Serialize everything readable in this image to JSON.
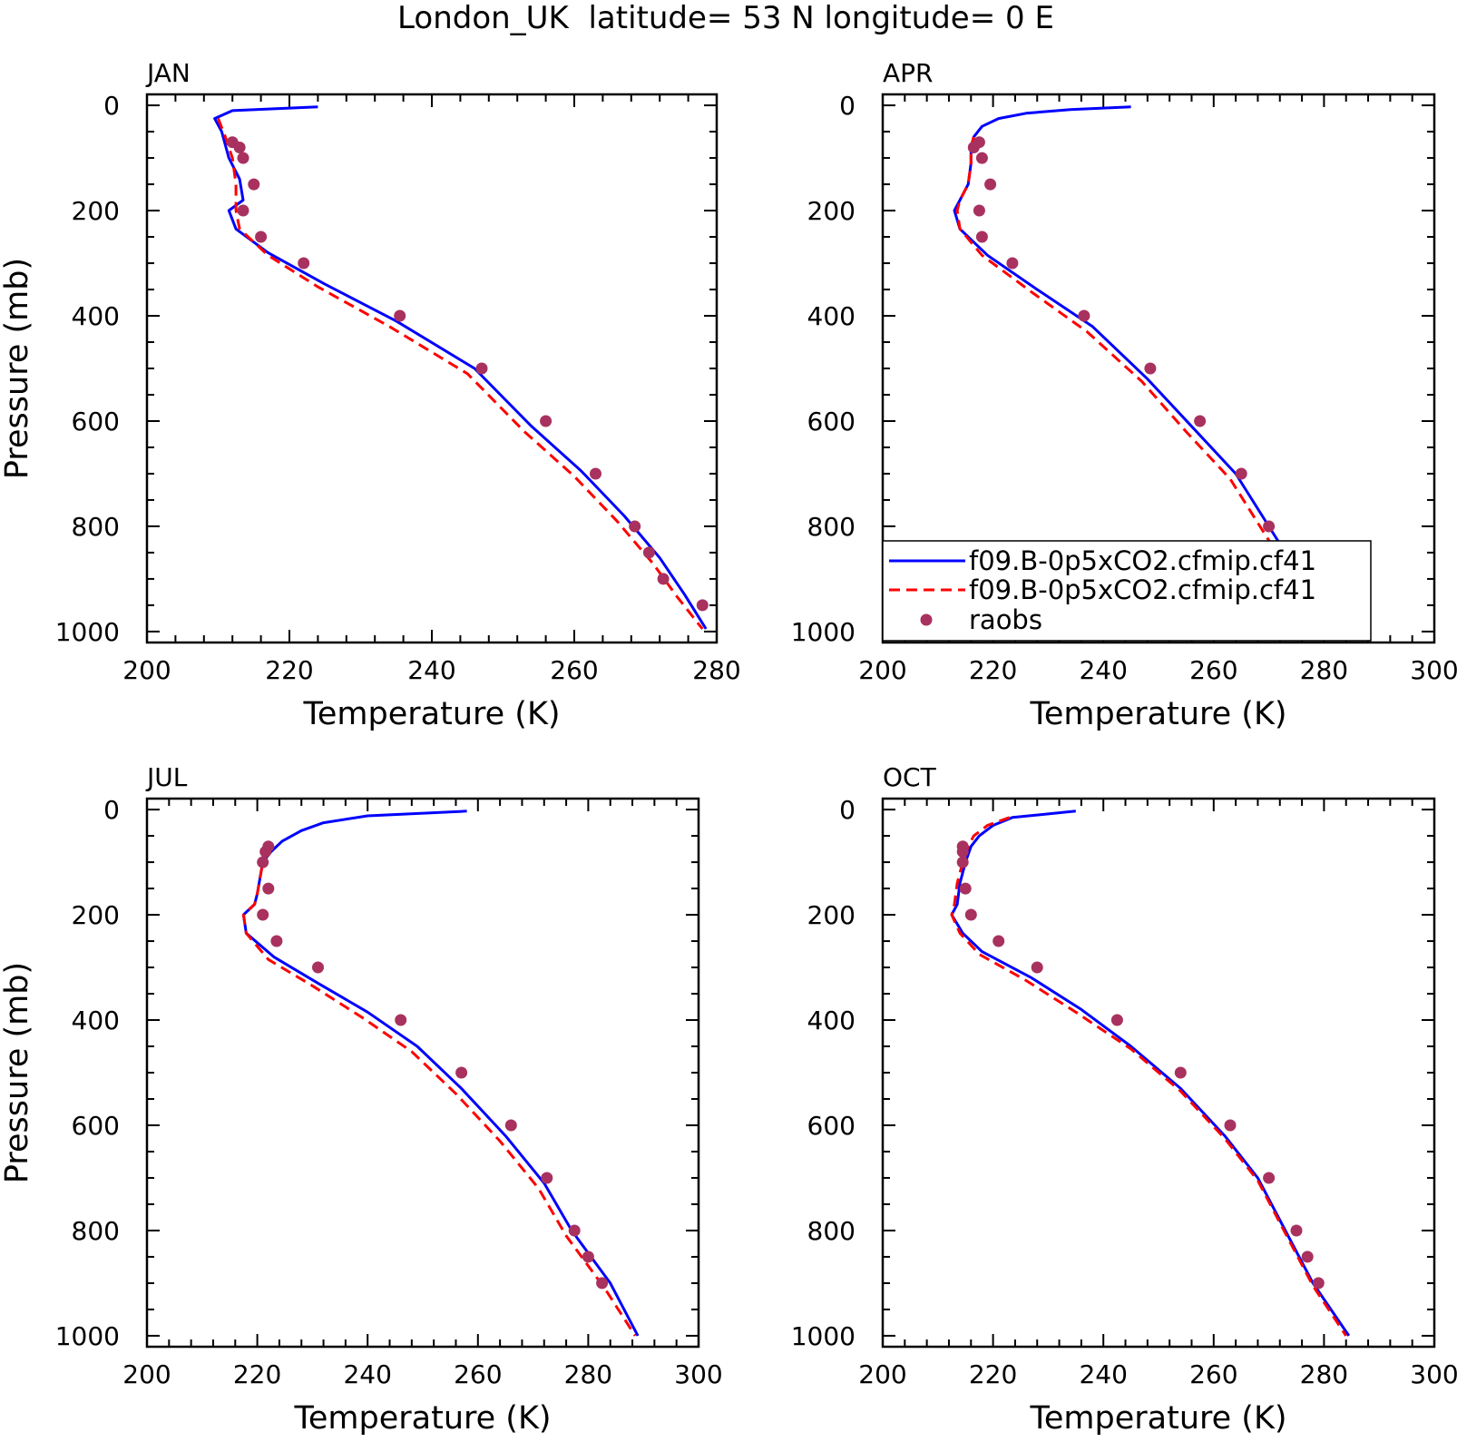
{
  "title": "London_UK  latitude= 53 N longitude= 0 E",
  "colors": {
    "model_a": "#0000ff",
    "model_b": "#ff0000",
    "obs": "#a8315f"
  },
  "legend": {
    "entries": [
      {
        "label": "f09.B-0p5xCO2.cfmip.cf41",
        "style": "solid"
      },
      {
        "label": "f09.B-0p5xCO2.cfmip.cf41",
        "style": "dashed"
      },
      {
        "label": "raobs",
        "style": "dots"
      }
    ],
    "placement": "bottom-left of APR panel"
  },
  "chart_data": [
    {
      "type": "line",
      "panel": "JAN",
      "xlabel": "Temperature (K)",
      "ylabel": "Pressure (mb)",
      "xlim": [
        200,
        280
      ],
      "ylim": [
        1000,
        0
      ],
      "y_inverted": true,
      "xticks": [
        200,
        220,
        240,
        260,
        280
      ],
      "yticks": [
        0,
        200,
        400,
        600,
        800,
        1000
      ],
      "grid": false,
      "series": [
        {
          "style": "solid",
          "x": [
            224,
            212,
            209.5,
            210.5,
            211.5,
            213,
            213.5,
            211.5,
            212.5,
            217,
            225,
            235,
            246,
            254,
            261,
            267,
            272,
            275.5,
            278.5
          ],
          "y": [
            3,
            10,
            25,
            50,
            100,
            140,
            180,
            200,
            235,
            280,
            340,
            410,
            500,
            610,
            695,
            780,
            860,
            930,
            995
          ]
        },
        {
          "style": "dashed",
          "x": [
            210,
            211,
            212,
            212.5,
            212.5,
            213,
            217,
            224,
            234,
            245,
            253,
            260,
            266,
            271,
            274.5,
            278
          ],
          "y": [
            25,
            60,
            100,
            150,
            200,
            235,
            285,
            345,
            420,
            510,
            620,
            705,
            790,
            870,
            935,
            995
          ]
        }
      ],
      "obs": {
        "x": [
          212,
          213,
          213.5,
          215,
          213.5,
          216,
          222,
          235.5,
          247,
          256,
          263,
          268.5,
          270.5,
          272.5,
          278
        ],
        "y": [
          70,
          80,
          100,
          150,
          200,
          250,
          300,
          400,
          500,
          600,
          700,
          800,
          850,
          900,
          950
        ]
      }
    },
    {
      "type": "line",
      "panel": "APR",
      "xlabel": "Temperature (K)",
      "ylabel": "",
      "xlim": [
        200,
        300
      ],
      "ylim": [
        1000,
        0
      ],
      "y_inverted": true,
      "xticks": [
        200,
        220,
        240,
        260,
        280,
        300
      ],
      "yticks": [
        0,
        200,
        400,
        600,
        800,
        1000
      ],
      "grid": false,
      "series": [
        {
          "style": "solid",
          "x": [
            245,
            234,
            226,
            221,
            218,
            216.5,
            216,
            216,
            215.5,
            214,
            213,
            214,
            219,
            228,
            238,
            248,
            256,
            264,
            270,
            276,
            281
          ],
          "y": [
            3,
            8,
            15,
            25,
            40,
            60,
            80,
            110,
            150,
            180,
            200,
            235,
            285,
            350,
            420,
            520,
            610,
            700,
            800,
            900,
            1000
          ]
        },
        {
          "style": "dashed",
          "x": [
            216.5,
            216,
            216,
            215.5,
            214,
            213.5,
            214,
            218,
            227,
            237,
            247,
            255,
            263,
            269,
            275,
            280.5
          ],
          "y": [
            60,
            80,
            110,
            150,
            180,
            200,
            235,
            285,
            355,
            430,
            525,
            620,
            710,
            810,
            910,
            1000
          ]
        }
      ],
      "obs": {
        "x": [
          217.5,
          216.5,
          218,
          219.5,
          217.5,
          218,
          223.5,
          236.5,
          248.5,
          257.5,
          265,
          270,
          272,
          275
        ],
        "y": [
          70,
          80,
          100,
          150,
          200,
          250,
          300,
          400,
          500,
          600,
          700,
          800,
          850,
          900
        ]
      }
    },
    {
      "type": "line",
      "panel": "JUL",
      "xlabel": "Temperature (K)",
      "ylabel": "Pressure (mb)",
      "xlim": [
        200,
        300
      ],
      "ylim": [
        1000,
        0
      ],
      "y_inverted": true,
      "xticks": [
        200,
        220,
        240,
        260,
        280,
        300
      ],
      "yticks": [
        0,
        200,
        400,
        600,
        800,
        1000
      ],
      "grid": false,
      "series": [
        {
          "style": "solid",
          "x": [
            258,
            240,
            232,
            228,
            224.5,
            222.5,
            221,
            220.5,
            220,
            219.5,
            217.5,
            218,
            223,
            231,
            240,
            249,
            257,
            265,
            272,
            277,
            284,
            289
          ],
          "y": [
            3,
            12,
            25,
            40,
            60,
            80,
            100,
            130,
            160,
            180,
            200,
            235,
            280,
            330,
            385,
            450,
            530,
            620,
            710,
            800,
            900,
            1000
          ]
        },
        {
          "style": "dashed",
          "x": [
            222,
            221,
            220.5,
            220,
            219.5,
            217.5,
            218,
            222,
            230,
            239,
            248,
            256,
            264,
            271,
            276,
            283,
            288.5
          ],
          "y": [
            80,
            100,
            130,
            160,
            180,
            200,
            235,
            285,
            335,
            395,
            460,
            540,
            630,
            720,
            810,
            910,
            1000
          ]
        }
      ],
      "obs": {
        "x": [
          222,
          221.5,
          221,
          222,
          221,
          223.5,
          231,
          246,
          257,
          266,
          272.5,
          277.5,
          280,
          282.5
        ],
        "y": [
          70,
          80,
          100,
          150,
          200,
          250,
          300,
          400,
          500,
          600,
          700,
          800,
          850,
          900
        ]
      }
    },
    {
      "type": "line",
      "panel": "OCT",
      "xlabel": "Temperature (K)",
      "ylabel": "",
      "xlim": [
        200,
        300
      ],
      "ylim": [
        1000,
        0
      ],
      "y_inverted": true,
      "xticks": [
        200,
        220,
        240,
        260,
        280,
        300
      ],
      "yticks": [
        0,
        200,
        400,
        600,
        800,
        1000
      ],
      "grid": false,
      "series": [
        {
          "style": "solid",
          "x": [
            235,
            223.5,
            220,
            217.5,
            216,
            215,
            214,
            213.5,
            212.5,
            214.5,
            218,
            227,
            236,
            245,
            254,
            262,
            268,
            273,
            278,
            284.5
          ],
          "y": [
            3,
            15,
            30,
            50,
            70,
            100,
            140,
            180,
            200,
            235,
            270,
            320,
            380,
            450,
            530,
            620,
            700,
            800,
            900,
            1000
          ]
        },
        {
          "style": "dashed",
          "x": [
            223,
            219,
            216.5,
            215.5,
            214.5,
            213.5,
            213,
            212.5,
            214,
            217.5,
            226,
            235,
            245,
            254,
            262,
            268,
            273,
            278,
            284
          ],
          "y": [
            15,
            30,
            50,
            70,
            100,
            140,
            180,
            200,
            235,
            275,
            325,
            385,
            455,
            535,
            625,
            705,
            805,
            905,
            1000
          ]
        }
      ],
      "obs": {
        "x": [
          214.5,
          214.5,
          214.5,
          215,
          216,
          221,
          228,
          242.5,
          254,
          263,
          270,
          275,
          277,
          279
        ],
        "y": [
          70,
          80,
          100,
          150,
          200,
          250,
          300,
          400,
          500,
          600,
          700,
          800,
          850,
          900
        ]
      }
    }
  ]
}
